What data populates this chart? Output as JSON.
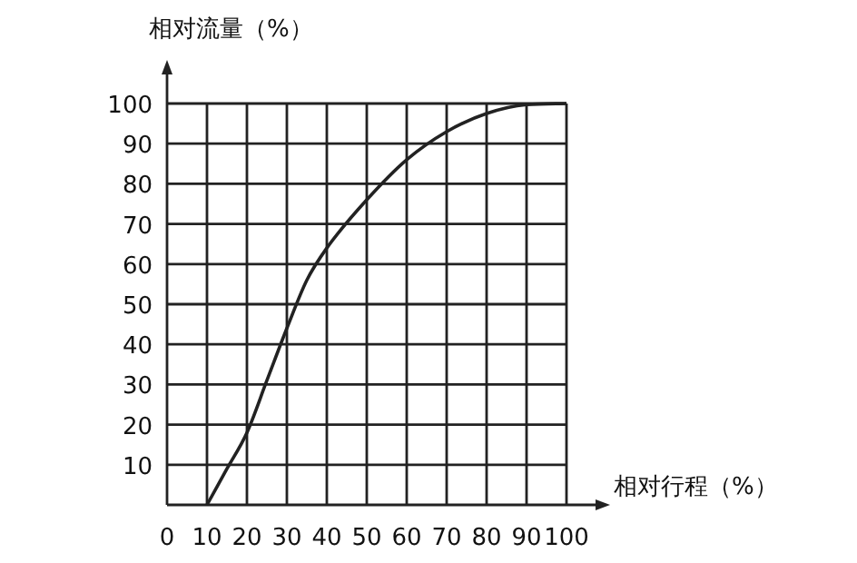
{
  "chart_data": {
    "type": "line",
    "xlabel": "相对行程（%）",
    "ylabel": "相对流量（%）",
    "x": [
      10,
      15,
      20,
      25,
      30,
      35,
      40,
      50,
      60,
      70,
      80,
      90,
      100
    ],
    "series": [
      {
        "color": "#222222",
        "values": [
          0,
          9,
          18,
          31,
          44,
          56,
          64,
          76,
          86,
          93,
          97.5,
          99.7,
          100
        ]
      }
    ],
    "xlim": [
      0,
      100
    ],
    "ylim": [
      0,
      100
    ],
    "xticks": [
      0,
      10,
      20,
      30,
      40,
      50,
      60,
      70,
      80,
      90,
      100
    ],
    "yticks": [
      10,
      20,
      30,
      40,
      50,
      60,
      70,
      80,
      90,
      100
    ],
    "grid": true,
    "line_style": "solid",
    "marker": "none"
  }
}
